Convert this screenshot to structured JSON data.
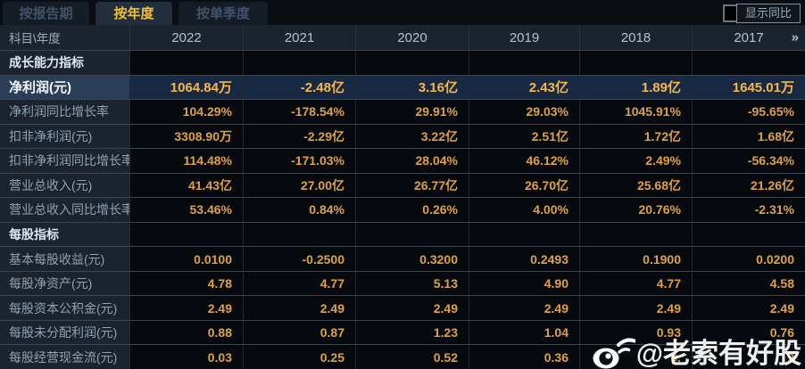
{
  "tabs": [
    {
      "label": "按报告期",
      "active": false
    },
    {
      "label": "按年度",
      "active": true
    },
    {
      "label": "按单季度",
      "active": false
    }
  ],
  "controls": {
    "show_yoy_label": "显示同比",
    "show_yoy_checked": false,
    "more_years_label": "»"
  },
  "table": {
    "corner_label": "科目\\年度",
    "years": [
      "2022",
      "2021",
      "2020",
      "2019",
      "2018",
      "2017"
    ],
    "rows": [
      {
        "type": "section",
        "label": "成长能力指标",
        "values": [
          "",
          "",
          "",
          "",
          "",
          ""
        ]
      },
      {
        "type": "highlight",
        "label": "净利润(元)",
        "values": [
          "1064.84万",
          "-2.48亿",
          "3.16亿",
          "2.43亿",
          "1.89亿",
          "1645.01万"
        ]
      },
      {
        "type": "data",
        "label": "净利润同比增长率",
        "values": [
          "104.29%",
          "-178.54%",
          "29.91%",
          "29.03%",
          "1045.91%",
          "-95.65%"
        ]
      },
      {
        "type": "data",
        "label": "扣非净利润(元)",
        "values": [
          "3308.90万",
          "-2.29亿",
          "3.22亿",
          "2.51亿",
          "1.72亿",
          "1.68亿"
        ]
      },
      {
        "type": "data",
        "label": "扣非净利润同比增长率",
        "values": [
          "114.48%",
          "-171.03%",
          "28.04%",
          "46.12%",
          "2.49%",
          "-56.34%"
        ]
      },
      {
        "type": "data",
        "label": "营业总收入(元)",
        "values": [
          "41.43亿",
          "27.00亿",
          "26.77亿",
          "26.70亿",
          "25.68亿",
          "21.26亿"
        ]
      },
      {
        "type": "data",
        "label": "营业总收入同比增长率",
        "values": [
          "53.46%",
          "0.84%",
          "0.26%",
          "4.00%",
          "20.76%",
          "-2.31%"
        ]
      },
      {
        "type": "section",
        "label": "每股指标",
        "values": [
          "",
          "",
          "",
          "",
          "",
          ""
        ]
      },
      {
        "type": "data",
        "label": "基本每股收益(元)",
        "values": [
          "0.0100",
          "-0.2500",
          "0.3200",
          "0.2493",
          "0.1900",
          "0.0200"
        ]
      },
      {
        "type": "data",
        "label": "每股净资产(元)",
        "values": [
          "4.78",
          "4.77",
          "5.13",
          "4.90",
          "4.77",
          "4.58"
        ]
      },
      {
        "type": "data",
        "label": "每股资本公积金(元)",
        "values": [
          "2.49",
          "2.49",
          "2.49",
          "2.49",
          "2.49",
          "2.49"
        ]
      },
      {
        "type": "data",
        "label": "每股未分配利润(元)",
        "values": [
          "0.88",
          "0.87",
          "1.23",
          "1.04",
          "0.93",
          "0.76"
        ]
      },
      {
        "type": "data",
        "label": "每股经营现金流(元)",
        "values": [
          "0.03",
          "0.25",
          "0.52",
          "0.36",
          "0.",
          "9"
        ]
      }
    ]
  },
  "watermark": {
    "text": "@老索有好股",
    "icon": "weibo-logo"
  },
  "colors": {
    "background": "#0a0e13",
    "label_cell_bg": "#1a232e",
    "value_cell_bg": "#06090d",
    "value_gold": "#dfa23f",
    "highlight_row_label_bg": "#2b3e58",
    "highlight_row_value_bg": "#182a43",
    "highlight_gold": "#f7b74a",
    "active_tab_text": "#f2c12e",
    "active_tab_bg": "#232e3c",
    "inactive_tab_text": "#41526a",
    "row_border": "#3d444c",
    "header_text": "#b5c1cc",
    "watermark_text": "#ffffff"
  }
}
